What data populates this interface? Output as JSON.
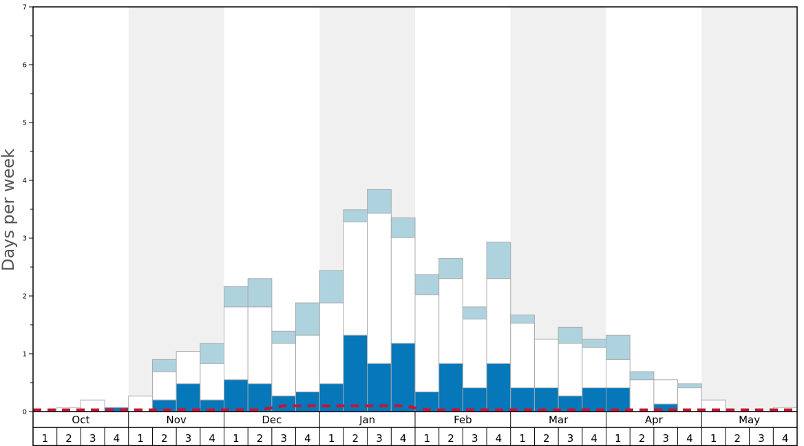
{
  "chart_data": {
    "type": "bar",
    "ylabel": "Days per week",
    "ylim": [
      0,
      7
    ],
    "yticks": [
      "0",
      "1",
      "2",
      "3",
      "4",
      "5",
      "6",
      "7"
    ],
    "months": [
      "Oct",
      "Nov",
      "Dec",
      "Jan",
      "Feb",
      "Mar",
      "Apr",
      "May"
    ],
    "week_labels": [
      "1",
      "2",
      "3",
      "4"
    ],
    "grid": false,
    "shaded_alternate_months": true,
    "colors": {
      "dark_segment": "#0677b8",
      "white_segment": "#ffffff",
      "light_segment": "#aed3df",
      "dashed_line": "#cc1133",
      "shade": "#f0f0f1",
      "bar_border": "#aaaaaa"
    },
    "series": [
      {
        "values": [
          0.0,
          0.0,
          0.0,
          0.07,
          0.0,
          0.2,
          0.48,
          0.2,
          0.55,
          0.48,
          0.27,
          0.34,
          0.48,
          1.32,
          0.83,
          1.18,
          0.34,
          0.83,
          0.41,
          0.83,
          0.41,
          0.41,
          0.27,
          0.41,
          0.41,
          0.0,
          0.13,
          0.0,
          0.0,
          0.0,
          0.0,
          0.0
        ]
      },
      {
        "values": [
          0.0,
          0.07,
          0.2,
          0.0,
          0.27,
          0.69,
          1.04,
          0.83,
          1.81,
          1.81,
          1.18,
          1.32,
          1.88,
          3.28,
          3.43,
          3.01,
          2.02,
          2.3,
          1.6,
          2.3,
          1.53,
          1.25,
          1.18,
          1.11,
          0.9,
          0.55,
          0.55,
          0.41,
          0.2,
          0.0,
          0.0,
          0.07
        ]
      },
      {
        "values": [
          0.0,
          0.07,
          0.2,
          0.07,
          0.27,
          0.9,
          1.04,
          1.18,
          2.16,
          2.3,
          1.39,
          1.88,
          2.44,
          3.49,
          3.84,
          3.35,
          2.37,
          2.65,
          1.81,
          2.93,
          1.67,
          1.25,
          1.46,
          1.25,
          1.32,
          0.69,
          0.55,
          0.48,
          0.2,
          0.0,
          0.0,
          0.07
        ]
      }
    ],
    "line": {
      "style": "dashed",
      "values": [
        0.03,
        0.03,
        0.03,
        0.03,
        0.03,
        0.03,
        0.03,
        0.03,
        0.03,
        0.03,
        0.1,
        0.1,
        0.1,
        0.1,
        0.1,
        0.1,
        0.03,
        0.03,
        0.03,
        0.03,
        0.03,
        0.03,
        0.03,
        0.03,
        0.03,
        0.03,
        0.03,
        0.03,
        0.03,
        0.03,
        0.03,
        0.03
      ]
    }
  }
}
